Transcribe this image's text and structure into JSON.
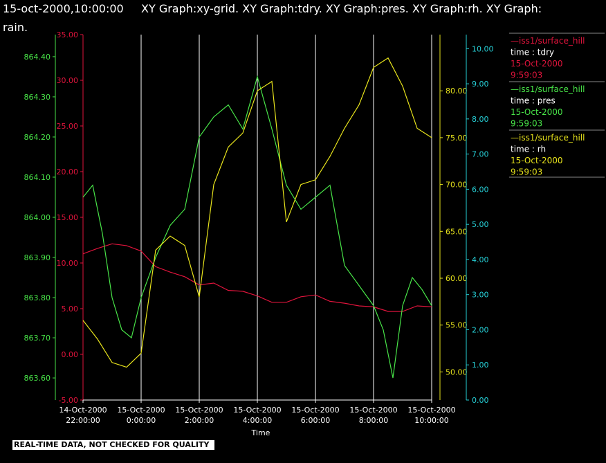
{
  "title": {
    "timestamp": "15-oct-2000,10:00:00",
    "line1": "XY Graph:xy-grid.  XY Graph:tdry.  XY Graph:pres.  XY Graph:rh.  XY Graph:",
    "line2": "rain."
  },
  "disclaimer": "REAL-TIME DATA, NOT CHECKED FOR QUALITY",
  "colors": {
    "tdry": "#e0143c",
    "pres": "#48e448",
    "rh": "#e8e41c",
    "rain": "#26cfd6",
    "title_timestamp": "#f5e000",
    "grid": "#ffffff",
    "legend_header_red": "#e0143c"
  },
  "legend": [
    {
      "series": "tdry",
      "color": "#e0143c",
      "lines": [
        "—iss1/surface_hill",
        "time : tdry",
        "15-Oct-2000",
        "9:59:03"
      ]
    },
    {
      "series": "pres",
      "color": "#48e448",
      "lines": [
        "—iss1/surface_hill",
        "time : pres",
        "15-Oct-2000",
        "9:59:03"
      ]
    },
    {
      "series": "rh",
      "color": "#e8e41c",
      "lines": [
        "—iss1/surface_hill",
        "time : rh",
        "15-Oct-2000",
        "9:59:03"
      ]
    }
  ],
  "chart_data": {
    "type": "line",
    "xlabel": "Time",
    "x_ticks": [
      {
        "date": "14-Oct-2000",
        "time": "22:00:00"
      },
      {
        "date": "15-Oct-2000",
        "time": "0:00:00"
      },
      {
        "date": "15-Oct-2000",
        "time": "2:00:00"
      },
      {
        "date": "15-Oct-2000",
        "time": "4:00:00"
      },
      {
        "date": "15-Oct-2000",
        "time": "6:00:00"
      },
      {
        "date": "15-Oct-2000",
        "time": "8:00:00"
      },
      {
        "date": "15-Oct-2000",
        "time": "10:00:00"
      }
    ],
    "xlim": [
      "14-Oct-2000 22:00:00",
      "15-Oct-2000 10:00:00"
    ],
    "grid": true,
    "axes": {
      "tdry": {
        "range": [
          -5,
          35
        ],
        "ticks": [
          "-5.00",
          "0.00",
          "5.00",
          "10.00",
          "15.00",
          "20.00",
          "25.00",
          "30.00",
          "35.00"
        ]
      },
      "pres": {
        "range": [
          863.545,
          864.455
        ],
        "ticks": [
          "863.60",
          "863.70",
          "863.80",
          "863.90",
          "864.00",
          "864.10",
          "864.20",
          "864.30",
          "864.40"
        ]
      },
      "rh": {
        "range": [
          47,
          86
        ],
        "ticks": [
          "50.00",
          "55.00",
          "60.00",
          "65.00",
          "70.00",
          "75.00",
          "80.00"
        ]
      },
      "rain": {
        "range": [
          0,
          10.4
        ],
        "ticks": [
          "0.00",
          "1.00",
          "2.00",
          "3.00",
          "4.00",
          "5.00",
          "6.00",
          "7.00",
          "8.00",
          "9.00",
          "10.00"
        ]
      }
    },
    "series": [
      {
        "name": "tdry",
        "x": [
          "14-Oct-2000 22:00:00",
          "14-Oct-2000 22:30:00",
          "14-Oct-2000 23:00:00",
          "14-Oct-2000 23:30:00",
          "15-Oct-2000 00:00:00",
          "15-Oct-2000 00:30:00",
          "15-Oct-2000 01:00:00",
          "15-Oct-2000 01:30:00",
          "15-Oct-2000 02:00:00",
          "15-Oct-2000 02:30:00",
          "15-Oct-2000 03:00:00",
          "15-Oct-2000 03:30:00",
          "15-Oct-2000 04:00:00",
          "15-Oct-2000 04:30:00",
          "15-Oct-2000 05:00:00",
          "15-Oct-2000 05:30:00",
          "15-Oct-2000 06:00:00",
          "15-Oct-2000 06:30:00",
          "15-Oct-2000 07:00:00",
          "15-Oct-2000 07:30:00",
          "15-Oct-2000 08:00:00",
          "15-Oct-2000 08:30:00",
          "15-Oct-2000 09:00:00",
          "15-Oct-2000 09:30:00",
          "15-Oct-2000 10:00:00"
        ],
        "values": [
          11.0,
          11.6,
          12.1,
          11.9,
          11.3,
          9.6,
          9.0,
          8.5,
          7.6,
          7.8,
          7.0,
          6.9,
          6.4,
          5.7,
          5.7,
          6.3,
          6.5,
          5.8,
          5.6,
          5.3,
          5.2,
          4.7,
          4.7,
          5.3,
          5.2
        ]
      },
      {
        "name": "pres",
        "x": [
          "14-Oct-2000 22:00:00",
          "14-Oct-2000 22:20:00",
          "14-Oct-2000 22:40:00",
          "14-Oct-2000 23:00:00",
          "14-Oct-2000 23:20:00",
          "14-Oct-2000 23:40:00",
          "15-Oct-2000 00:00:00",
          "15-Oct-2000 00:30:00",
          "15-Oct-2000 01:00:00",
          "15-Oct-2000 01:30:00",
          "15-Oct-2000 02:00:00",
          "15-Oct-2000 02:30:00",
          "15-Oct-2000 03:00:00",
          "15-Oct-2000 03:30:00",
          "15-Oct-2000 04:00:00",
          "15-Oct-2000 04:30:00",
          "15-Oct-2000 05:00:00",
          "15-Oct-2000 05:30:00",
          "15-Oct-2000 06:00:00",
          "15-Oct-2000 06:30:00",
          "15-Oct-2000 07:00:00",
          "15-Oct-2000 07:30:00",
          "15-Oct-2000 08:00:00",
          "15-Oct-2000 08:20:00",
          "15-Oct-2000 08:40:00",
          "15-Oct-2000 09:00:00",
          "15-Oct-2000 09:20:00",
          "15-Oct-2000 09:40:00",
          "15-Oct-2000 10:00:00"
        ],
        "values": [
          864.05,
          864.08,
          863.96,
          863.8,
          863.72,
          863.7,
          863.8,
          863.9,
          863.98,
          864.02,
          864.2,
          864.25,
          864.28,
          864.22,
          864.35,
          864.22,
          864.08,
          864.02,
          864.05,
          864.08,
          863.88,
          863.83,
          863.78,
          863.72,
          863.6,
          863.78,
          863.85,
          863.82,
          863.78
        ]
      },
      {
        "name": "rh",
        "x": [
          "14-Oct-2000 22:00:00",
          "14-Oct-2000 22:30:00",
          "14-Oct-2000 23:00:00",
          "14-Oct-2000 23:30:00",
          "15-Oct-2000 00:00:00",
          "15-Oct-2000 00:30:00",
          "15-Oct-2000 01:00:00",
          "15-Oct-2000 01:30:00",
          "15-Oct-2000 02:00:00",
          "15-Oct-2000 02:30:00",
          "15-Oct-2000 03:00:00",
          "15-Oct-2000 03:30:00",
          "15-Oct-2000 04:00:00",
          "15-Oct-2000 04:30:00",
          "15-Oct-2000 05:00:00",
          "15-Oct-2000 05:30:00",
          "15-Oct-2000 06:00:00",
          "15-Oct-2000 06:30:00",
          "15-Oct-2000 07:00:00",
          "15-Oct-2000 07:30:00",
          "15-Oct-2000 08:00:00",
          "15-Oct-2000 08:30:00",
          "15-Oct-2000 09:00:00",
          "15-Oct-2000 09:30:00",
          "15-Oct-2000 10:00:00"
        ],
        "values": [
          55.5,
          53.5,
          51.0,
          50.5,
          52.0,
          63.0,
          64.5,
          63.5,
          58.0,
          70.0,
          74.0,
          75.5,
          80.0,
          81.0,
          66.0,
          70.0,
          70.5,
          73.0,
          76.0,
          78.5,
          82.5,
          83.5,
          80.5,
          76.0,
          75.0
        ]
      }
    ]
  }
}
